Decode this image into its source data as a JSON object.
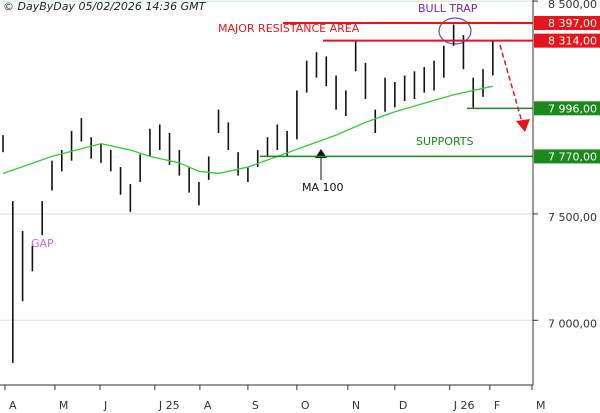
{
  "chart_data": {
    "type": "ohlc",
    "copyright": "© DayByDay 05/02/2026  14:36 GMT",
    "annotations": {
      "resistance": "MAJOR RESISTANCE AREA",
      "bull_trap": "BULL TRAP",
      "supports": "SUPPORTS",
      "gap": "GAP"
    },
    "xlim": [
      0,
      108
    ],
    "xticks": [
      {
        "value": 0.4,
        "label": "A"
      },
      {
        "value": 10.6,
        "label": "M"
      },
      {
        "value": 19.8,
        "label": "J"
      },
      {
        "value": 31,
        "label": "J 25"
      },
      {
        "value": 40.2,
        "label": "A"
      },
      {
        "value": 50,
        "label": "S"
      },
      {
        "value": 60,
        "label": "O"
      },
      {
        "value": 70.4,
        "label": "N"
      },
      {
        "value": 80,
        "label": "D"
      },
      {
        "value": 91.2,
        "label": "J 26"
      },
      {
        "value": 99.4,
        "label": "F"
      },
      {
        "value": 108,
        "label": "M"
      }
    ],
    "ylim": [
      6696,
      8505
    ],
    "yticks": [
      {
        "value": 7000,
        "label": "7 000,00"
      },
      {
        "value": 7500,
        "label": "7 500,00"
      },
      {
        "value": 8500,
        "label": "8 500,00"
      }
    ],
    "grid": true,
    "ohlc": {
      "color": "#111111",
      "x": [
        0,
        2,
        4,
        6,
        8,
        10,
        12,
        14,
        16,
        18,
        20,
        22,
        24,
        26,
        28,
        30,
        32,
        34,
        36,
        38,
        40,
        42,
        44,
        46,
        48,
        50,
        52,
        54,
        56,
        58,
        60,
        62,
        64,
        66,
        68,
        70,
        72,
        74,
        76,
        78,
        80,
        82,
        84,
        86,
        88,
        90,
        92,
        94,
        96,
        98,
        100
      ],
      "high": [
        7870,
        7560,
        7420,
        7350,
        7560,
        7750,
        7800,
        7890,
        7950,
        7860,
        7830,
        7800,
        7720,
        7640,
        7780,
        7900,
        7920,
        7880,
        7800,
        7720,
        7650,
        7770,
        7990,
        7930,
        7790,
        7720,
        7800,
        7860,
        7920,
        7890,
        8080,
        8220,
        8260,
        8240,
        8150,
        8080,
        8310,
        8210,
        7990,
        8140,
        8120,
        8150,
        8170,
        8190,
        8220,
        8290,
        8390,
        8340,
        8140,
        8180,
        8310
      ],
      "low": [
        7790,
        6800,
        7090,
        7230,
        7400,
        7610,
        7700,
        7750,
        7840,
        7760,
        7740,
        7700,
        7590,
        7510,
        7650,
        7770,
        7800,
        7730,
        7680,
        7600,
        7540,
        7660,
        7880,
        7800,
        7680,
        7650,
        7720,
        7770,
        7800,
        7770,
        7850,
        8070,
        8140,
        8100,
        7990,
        7960,
        8170,
        8040,
        7880,
        7980,
        8000,
        8030,
        8040,
        8070,
        8080,
        8140,
        8290,
        8180,
        8000,
        8050,
        8150
      ]
    },
    "series": [
      {
        "name": "MA 100",
        "color": "#33cc33",
        "x": [
          0,
          10,
          20,
          26,
          30,
          36,
          40,
          44,
          50,
          56,
          62,
          68,
          74,
          80,
          86,
          92,
          100
        ],
        "values": [
          7690,
          7770,
          7830,
          7800,
          7770,
          7740,
          7700,
          7690,
          7720,
          7770,
          7820,
          7870,
          7930,
          7980,
          8020,
          8060,
          8100
        ]
      }
    ],
    "levels": [
      {
        "value": 8397,
        "label": "8 397,00",
        "color": "#e8141c"
      },
      {
        "value": 8314,
        "label": "8 314,00",
        "color": "#e8141c"
      },
      {
        "value": 7996,
        "label": "7 996,00",
        "color": "#1a8a1a"
      },
      {
        "value": 7770,
        "label": "7 770,00",
        "color": "#1a8a1a"
      }
    ]
  }
}
